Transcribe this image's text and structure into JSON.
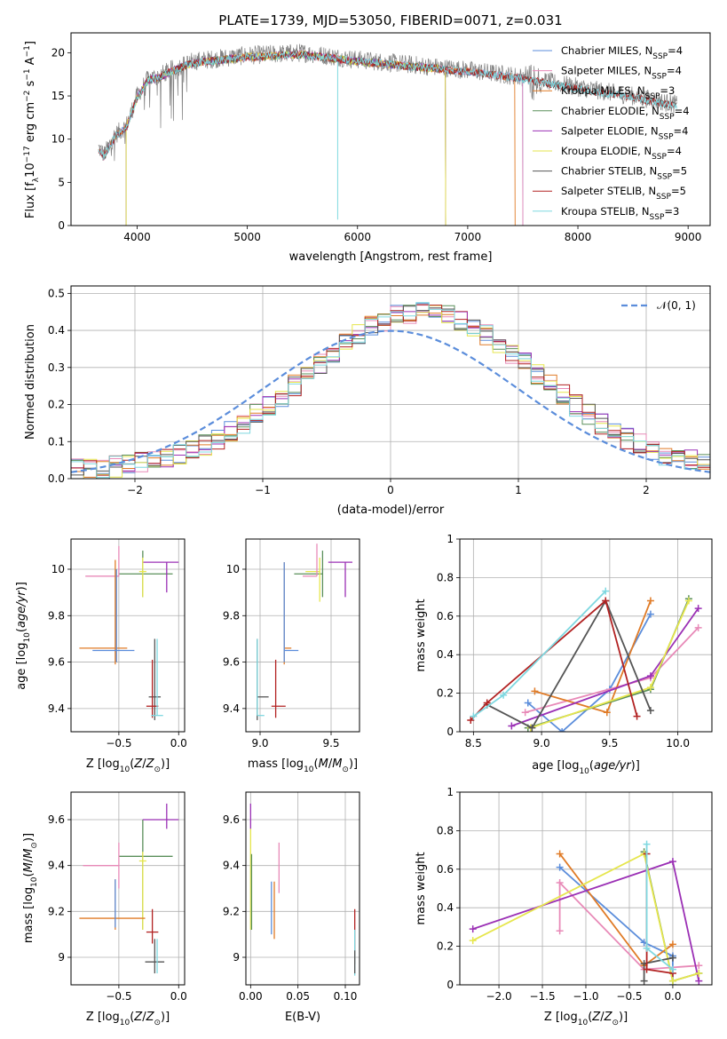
{
  "figure": {
    "title": "PLATE=1739, MJD=53050, FIBERID=0071, z=0.031"
  },
  "chart_data": [
    {
      "id": "spectrum",
      "type": "line",
      "xlabel": "wavelength [Angstrom, rest frame]",
      "ylabel": "Flux [f_λ10^-17 erg cm^-2 s^-1 A^-1]",
      "xlim": [
        3400,
        9200
      ],
      "ylim": [
        0,
        22.3
      ],
      "xticks": [
        4000,
        5000,
        6000,
        7000,
        8000,
        9000
      ],
      "yticks": [
        0,
        5,
        10,
        15,
        20
      ],
      "grid": false,
      "legend_position": "top-right",
      "observed_color": "#808080",
      "series": [
        {
          "name": "Chabrier MILES, N_SSP=4",
          "color": "#5b8ddb",
          "x_range": [
            3650,
            7500
          ]
        },
        {
          "name": "Salpeter MILES, N_SSP=4",
          "color": "#e88ab8",
          "x_range": [
            3650,
            7500
          ]
        },
        {
          "name": "Kroupa MILES, N_SSP=3",
          "color": "#e07b27",
          "x_range": [
            3650,
            7430
          ]
        },
        {
          "name": "Chabrier ELODIE, N_SSP=4",
          "color": "#5a8f5a",
          "x_range": [
            3900,
            6800
          ]
        },
        {
          "name": "Salpeter ELODIE, N_SSP=4",
          "color": "#9b30b5",
          "x_range": [
            3900,
            6800
          ]
        },
        {
          "name": "Kroupa ELODIE, N_SSP=4",
          "color": "#e6e64d",
          "x_range": [
            3900,
            6800
          ]
        },
        {
          "name": "Chabrier STELIB, N_SSP=5",
          "color": "#555555",
          "x_range": [
            3650,
            8900
          ]
        },
        {
          "name": "Salpeter STELIB, N_SSP=5",
          "color": "#b22222",
          "x_range": [
            3650,
            8900
          ]
        },
        {
          "name": "Kroupa STELIB, N_SSP=3",
          "color": "#7fd8e0",
          "x_range": [
            3650,
            8900
          ]
        }
      ],
      "continuum": {
        "x": [
          3650,
          3700,
          3800,
          3900,
          4000,
          4100,
          4200,
          4300,
          4500,
          5000,
          5500,
          6000,
          6500,
          7000,
          7500,
          8000,
          8500,
          8900
        ],
        "y": [
          9.0,
          8.2,
          10.5,
          11.5,
          15.0,
          17.0,
          17.3,
          18.0,
          19.0,
          19.7,
          20.0,
          19.2,
          18.6,
          18.0,
          17.2,
          16.0,
          15.0,
          14.0
        ]
      }
    },
    {
      "id": "residuals",
      "type": "histogram",
      "xlabel": "(data-model)/error",
      "ylabel": "Normed distribution",
      "xlim": [
        -2.5,
        2.5
      ],
      "ylim": [
        0,
        0.52
      ],
      "xticks": [
        -2,
        -1,
        0,
        1,
        2
      ],
      "yticks": [
        0.0,
        0.1,
        0.2,
        0.3,
        0.4,
        0.5
      ],
      "grid": true,
      "legend_position": "top-right",
      "reference_curve": {
        "name": "𝒩(0, 1)",
        "color": "#5b8ddb",
        "style": "dashed"
      },
      "bin_width": 0.1,
      "base_curve": {
        "mu": 0.25,
        "sigma": 0.9,
        "amp": 0.43
      },
      "series_colors": [
        "#5b8ddb",
        "#e88ab8",
        "#e07b27",
        "#5a8f5a",
        "#9b30b5",
        "#e6e64d",
        "#555555",
        "#b22222",
        "#7fd8e0"
      ]
    },
    {
      "id": "age_vs_Z",
      "type": "errorbar",
      "xlabel": "Z [log10(Z/Z⊙)]",
      "ylabel": "age  [log10(age/yr)]",
      "xlim": [
        -0.9,
        0.05
      ],
      "ylim": [
        9.3,
        10.13
      ],
      "xticks": [
        -0.5,
        0.0
      ],
      "xticklabels": [
        "−0.5",
        "0.0"
      ],
      "yticks": [
        9.4,
        9.6,
        9.8,
        10.0
      ],
      "grid": true,
      "points": [
        {
          "x": -0.3,
          "y": 9.98,
          "xerr": [
            0.2,
            0.25
          ],
          "yerr": [
            0.1,
            0.1
          ],
          "color": "#5a8f5a"
        },
        {
          "x": -0.1,
          "y": 10.03,
          "xerr": [
            0.2,
            0.1
          ],
          "yerr": [
            0.13,
            0.0
          ],
          "color": "#9b30b5"
        },
        {
          "x": -0.3,
          "y": 9.99,
          "xerr": [
            0.03,
            0.03
          ],
          "yerr": [
            0.11,
            0.06
          ],
          "color": "#e6e64d"
        },
        {
          "x": -0.5,
          "y": 9.97,
          "xerr": [
            0.28,
            0.0
          ],
          "yerr": [
            0.0,
            0.13
          ],
          "color": "#e88ab8"
        },
        {
          "x": -0.53,
          "y": 9.66,
          "xerr": [
            0.3,
            0.1
          ],
          "yerr": [
            0.07,
            0.38
          ],
          "color": "#e07b27"
        },
        {
          "x": -0.52,
          "y": 9.65,
          "xerr": [
            0.2,
            0.15
          ],
          "yerr": [
            0.05,
            0.35
          ],
          "color": "#5b8ddb"
        },
        {
          "x": -0.2,
          "y": 9.45,
          "xerr": [
            0.05,
            0.05
          ],
          "yerr": [
            0.1,
            0.25
          ],
          "color": "#555555"
        },
        {
          "x": -0.22,
          "y": 9.41,
          "xerr": [
            0.05,
            0.05
          ],
          "yerr": [
            0.05,
            0.2
          ],
          "color": "#b22222"
        },
        {
          "x": -0.18,
          "y": 9.37,
          "xerr": [
            0.05,
            0.05
          ],
          "yerr": [
            0.0,
            0.33
          ],
          "color": "#7fd8e0"
        }
      ]
    },
    {
      "id": "age_vs_mass",
      "type": "errorbar",
      "xlabel": "mass [log10(M/M⊙)]",
      "ylabel": "",
      "xlim": [
        8.9,
        9.7
      ],
      "ylim": [
        9.3,
        10.13
      ],
      "xticks": [
        9.0,
        9.5
      ],
      "xticklabels": [
        "9.0",
        "9.5"
      ],
      "yticks": [
        9.4,
        9.6,
        9.8,
        10.0
      ],
      "grid": true,
      "points": [
        {
          "x": 9.44,
          "y": 9.98,
          "xerr": [
            0.2,
            0.0
          ],
          "yerr": [
            0.1,
            0.1
          ],
          "color": "#5a8f5a"
        },
        {
          "x": 9.6,
          "y": 10.03,
          "xerr": [
            0.12,
            0.05
          ],
          "yerr": [
            0.15,
            0.0
          ],
          "color": "#9b30b5"
        },
        {
          "x": 9.42,
          "y": 9.99,
          "xerr": [
            0.1,
            0.0
          ],
          "yerr": [
            0.13,
            0.06
          ],
          "color": "#e6e64d"
        },
        {
          "x": 9.4,
          "y": 9.97,
          "xerr": [
            0.1,
            0.0
          ],
          "yerr": [
            0.0,
            0.14
          ],
          "color": "#e88ab8"
        },
        {
          "x": 9.17,
          "y": 9.66,
          "xerr": [
            0.0,
            0.05
          ],
          "yerr": [
            0.07,
            0.37
          ],
          "color": "#e07b27"
        },
        {
          "x": 9.17,
          "y": 9.65,
          "xerr": [
            0.0,
            0.1
          ],
          "yerr": [
            0.05,
            0.38
          ],
          "color": "#5b8ddb"
        },
        {
          "x": 8.98,
          "y": 9.45,
          "xerr": [
            0.0,
            0.08
          ],
          "yerr": [
            0.1,
            0.25
          ],
          "color": "#555555"
        },
        {
          "x": 9.11,
          "y": 9.41,
          "xerr": [
            0.03,
            0.07
          ],
          "yerr": [
            0.05,
            0.2
          ],
          "color": "#b22222"
        },
        {
          "x": 8.98,
          "y": 9.37,
          "xerr": [
            0.0,
            0.05
          ],
          "yerr": [
            0.0,
            0.33
          ],
          "color": "#7fd8e0"
        }
      ]
    },
    {
      "id": "weight_vs_age",
      "type": "line",
      "xlabel": "age  [log10(age/yr)]",
      "ylabel": "mass weight",
      "xlim": [
        8.4,
        10.25
      ],
      "ylim": [
        0,
        1.0
      ],
      "xticks": [
        8.5,
        9.0,
        9.5,
        10.0
      ],
      "xticklabels": [
        "8.5",
        "9.0",
        "9.5",
        "10.0"
      ],
      "yticks": [
        0.0,
        0.2,
        0.4,
        0.6,
        0.8,
        1.0
      ],
      "grid": true,
      "series": [
        {
          "color": "#5b8ddb",
          "x": [
            8.9,
            9.15,
            9.5,
            9.8
          ],
          "y": [
            0.15,
            0.0,
            0.22,
            0.61
          ]
        },
        {
          "color": "#e88ab8",
          "x": [
            8.88,
            9.8,
            10.15
          ],
          "y": [
            0.1,
            0.28,
            0.54
          ]
        },
        {
          "color": "#e07b27",
          "x": [
            8.95,
            9.48,
            9.8
          ],
          "y": [
            0.21,
            0.1,
            0.68
          ]
        },
        {
          "color": "#5a8f5a",
          "x": [
            8.9,
            9.8,
            10.08
          ],
          "y": [
            0.02,
            0.22,
            0.69
          ]
        },
        {
          "color": "#9b30b5",
          "x": [
            8.78,
            9.8,
            10.15
          ],
          "y": [
            0.03,
            0.29,
            0.64
          ]
        },
        {
          "color": "#e6e64d",
          "x": [
            8.92,
            9.8,
            10.08
          ],
          "y": [
            0.02,
            0.23,
            0.68
          ]
        },
        {
          "color": "#555555",
          "x": [
            8.6,
            8.93,
            9.47,
            9.8
          ],
          "y": [
            0.14,
            0.02,
            0.68,
            0.11
          ]
        },
        {
          "color": "#b22222",
          "x": [
            8.48,
            8.6,
            9.47,
            9.7
          ],
          "y": [
            0.06,
            0.15,
            0.68,
            0.08
          ]
        },
        {
          "color": "#7fd8e0",
          "x": [
            8.5,
            8.72,
            9.47
          ],
          "y": [
            0.08,
            0.19,
            0.73
          ]
        }
      ]
    },
    {
      "id": "mass_vs_Z",
      "type": "errorbar",
      "xlabel": "Z [log10(Z/Z⊙)]",
      "ylabel": "mass [log10(M/M⊙)]",
      "xlim": [
        -0.9,
        0.05
      ],
      "ylim": [
        8.88,
        9.72
      ],
      "xticks": [
        -0.5,
        0.0
      ],
      "xticklabels": [
        "−0.5",
        "0.0"
      ],
      "yticks": [
        9.0,
        9.2,
        9.4,
        9.6
      ],
      "grid": true,
      "points": [
        {
          "x": -0.3,
          "y": 9.44,
          "xerr": [
            0.2,
            0.25
          ],
          "yerr": [
            0.32,
            0.16
          ],
          "color": "#5a8f5a"
        },
        {
          "x": -0.1,
          "y": 9.6,
          "xerr": [
            0.2,
            0.1
          ],
          "yerr": [
            0.04,
            0.07
          ],
          "color": "#9b30b5"
        },
        {
          "x": -0.3,
          "y": 9.42,
          "xerr": [
            0.03,
            0.03
          ],
          "yerr": [
            0.3,
            0.04
          ],
          "color": "#e6e64d"
        },
        {
          "x": -0.5,
          "y": 9.4,
          "xerr": [
            0.3,
            0.0
          ],
          "yerr": [
            0.1,
            0.1
          ],
          "color": "#e88ab8"
        },
        {
          "x": -0.53,
          "y": 9.17,
          "xerr": [
            0.3,
            0.25
          ],
          "yerr": [
            0.05,
            0.17
          ],
          "color": "#e07b27"
        },
        {
          "x": -0.53,
          "y": 9.18,
          "xerr": [
            0.0,
            0.0
          ],
          "yerr": [
            0.05,
            0.16
          ],
          "color": "#5b8ddb"
        },
        {
          "x": -0.2,
          "y": 8.98,
          "xerr": [
            0.08,
            0.08
          ],
          "yerr": [
            0.05,
            0.1
          ],
          "color": "#555555"
        },
        {
          "x": -0.22,
          "y": 9.11,
          "xerr": [
            0.05,
            0.05
          ],
          "yerr": [
            0.05,
            0.1
          ],
          "color": "#b22222"
        },
        {
          "x": -0.18,
          "y": 8.98,
          "xerr": [
            0.0,
            0.0
          ],
          "yerr": [
            0.05,
            0.1
          ],
          "color": "#7fd8e0"
        }
      ]
    },
    {
      "id": "ebv",
      "type": "errorbar",
      "xlabel": "E(B-V)",
      "ylabel": "",
      "xlim": [
        -0.005,
        0.115
      ],
      "ylim": [
        8.88,
        9.72
      ],
      "xticks": [
        0.0,
        0.05,
        0.1
      ],
      "xticklabels": [
        "0.00",
        "0.05",
        "0.10"
      ],
      "yticks": [
        9.0,
        9.2,
        9.4,
        9.6
      ],
      "grid": true,
      "points": [
        {
          "x": 0.0,
          "y": 9.6,
          "yerr": [
            0.04,
            0.07
          ],
          "color": "#9b30b5"
        },
        {
          "x": 0.0,
          "y": 9.42,
          "yerr": [
            0.3,
            0.14
          ],
          "color": "#e6e64d"
        },
        {
          "x": 0.001,
          "y": 9.3,
          "yerr": [
            0.18,
            0.15
          ],
          "color": "#5a8f5a"
        },
        {
          "x": 0.03,
          "y": 9.38,
          "yerr": [
            0.1,
            0.12
          ],
          "color": "#e88ab8"
        },
        {
          "x": 0.022,
          "y": 9.2,
          "yerr": [
            0.1,
            0.13
          ],
          "color": "#5b8ddb"
        },
        {
          "x": 0.025,
          "y": 9.2,
          "yerr": [
            0.12,
            0.13
          ],
          "color": "#e07b27"
        },
        {
          "x": 0.11,
          "y": 9.1,
          "yerr": [
            0.13,
            0.11
          ],
          "color": "#b22222"
        },
        {
          "x": 0.11,
          "y": 9.0,
          "yerr": [
            0.08,
            0.12
          ],
          "color": "#7fd8e0"
        },
        {
          "x": 0.11,
          "y": 8.98,
          "yerr": [
            0.05,
            0.05
          ],
          "color": "#555555"
        }
      ]
    },
    {
      "id": "weight_vs_Z",
      "type": "line",
      "xlabel": "Z [log10(Z/Z⊙)]",
      "ylabel": "mass weight",
      "xlim": [
        -2.45,
        0.45
      ],
      "ylim": [
        0,
        1.0
      ],
      "xticks": [
        -2.0,
        -1.5,
        -1.0,
        -0.5,
        0.0
      ],
      "xticklabels": [
        "−2.0",
        "−1.5",
        "−1.0",
        "−0.5",
        "0.0"
      ],
      "yticks": [
        0.0,
        0.2,
        0.4,
        0.6,
        0.8,
        1.0
      ],
      "grid": true,
      "series": [
        {
          "color": "#5b8ddb",
          "x": [
            -1.3,
            -0.33,
            0.0,
            0.0
          ],
          "y": [
            0.61,
            0.22,
            0.15,
            0.0
          ]
        },
        {
          "color": "#e88ab8",
          "x": [
            -1.3,
            -1.3,
            -0.33,
            0.3
          ],
          "y": [
            0.28,
            0.53,
            0.08,
            0.1
          ]
        },
        {
          "color": "#e07b27",
          "x": [
            -1.3,
            -0.33,
            0.0
          ],
          "y": [
            0.68,
            0.1,
            0.21
          ]
        },
        {
          "color": "#5a8f5a",
          "x": [
            -0.33,
            0.0,
            0.3
          ],
          "y": [
            0.69,
            0.02,
            0.06
          ]
        },
        {
          "color": "#9b30b5",
          "x": [
            -2.3,
            0.0,
            0.3
          ],
          "y": [
            0.29,
            0.64,
            0.02
          ]
        },
        {
          "color": "#e6e64d",
          "x": [
            -2.3,
            -0.33,
            0.0,
            0.3
          ],
          "y": [
            0.23,
            0.68,
            0.02,
            0.06
          ]
        },
        {
          "color": "#555555",
          "x": [
            -0.33,
            -0.33,
            0.0
          ],
          "y": [
            0.02,
            0.11,
            0.14
          ]
        },
        {
          "color": "#b22222",
          "x": [
            -0.3,
            -0.3,
            0.0
          ],
          "y": [
            0.68,
            0.08,
            0.06
          ]
        },
        {
          "color": "#7fd8e0",
          "x": [
            -0.3,
            -0.3,
            0.0
          ],
          "y": [
            0.73,
            0.19,
            0.08
          ]
        }
      ]
    }
  ]
}
